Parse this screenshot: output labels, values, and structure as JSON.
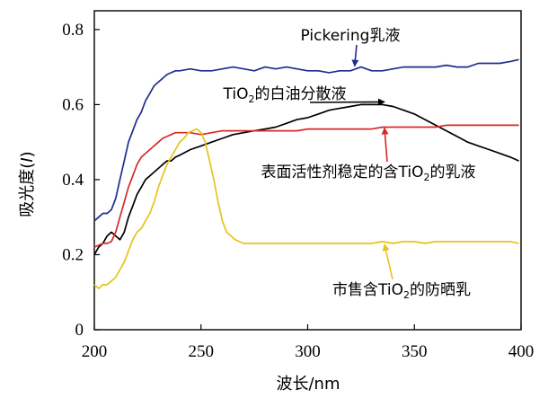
{
  "chart_data": {
    "type": "line",
    "xlabel": "波长/nm",
    "ylabel_prefix": "吸光度(",
    "ylabel_italic": "I",
    "ylabel_suffix": ")",
    "xlim": [
      200,
      400
    ],
    "ylim": [
      0,
      0.85
    ],
    "xticks": [
      200,
      250,
      300,
      350,
      400
    ],
    "yticks": [
      0,
      0.2,
      0.4,
      0.6,
      0.8
    ],
    "ytick_labels": [
      "0",
      "0.2",
      "0.4",
      "0.6",
      "0.8"
    ],
    "series": [
      {
        "name": "Pickering乳液",
        "color": "#1f2d8f",
        "points": [
          [
            200,
            0.29
          ],
          [
            202,
            0.3
          ],
          [
            204,
            0.31
          ],
          [
            206,
            0.31
          ],
          [
            208,
            0.32
          ],
          [
            210,
            0.35
          ],
          [
            212,
            0.4
          ],
          [
            214,
            0.45
          ],
          [
            216,
            0.5
          ],
          [
            218,
            0.53
          ],
          [
            220,
            0.56
          ],
          [
            222,
            0.58
          ],
          [
            224,
            0.61
          ],
          [
            226,
            0.63
          ],
          [
            228,
            0.65
          ],
          [
            230,
            0.66
          ],
          [
            232,
            0.67
          ],
          [
            234,
            0.68
          ],
          [
            236,
            0.685
          ],
          [
            238,
            0.69
          ],
          [
            240,
            0.69
          ],
          [
            245,
            0.695
          ],
          [
            250,
            0.69
          ],
          [
            255,
            0.69
          ],
          [
            260,
            0.695
          ],
          [
            265,
            0.7
          ],
          [
            270,
            0.695
          ],
          [
            275,
            0.69
          ],
          [
            280,
            0.7
          ],
          [
            285,
            0.695
          ],
          [
            290,
            0.7
          ],
          [
            295,
            0.695
          ],
          [
            300,
            0.69
          ],
          [
            305,
            0.69
          ],
          [
            310,
            0.685
          ],
          [
            315,
            0.69
          ],
          [
            320,
            0.69
          ],
          [
            325,
            0.7
          ],
          [
            330,
            0.69
          ],
          [
            335,
            0.69
          ],
          [
            340,
            0.695
          ],
          [
            345,
            0.7
          ],
          [
            350,
            0.7
          ],
          [
            355,
            0.7
          ],
          [
            360,
            0.7
          ],
          [
            365,
            0.705
          ],
          [
            370,
            0.7
          ],
          [
            375,
            0.7
          ],
          [
            380,
            0.71
          ],
          [
            385,
            0.71
          ],
          [
            390,
            0.71
          ],
          [
            395,
            0.715
          ],
          [
            399,
            0.72
          ]
        ]
      },
      {
        "name": "TiO₂的白油分散液",
        "color": "#000000",
        "points": [
          [
            200,
            0.2
          ],
          [
            202,
            0.22
          ],
          [
            204,
            0.23
          ],
          [
            206,
            0.25
          ],
          [
            208,
            0.26
          ],
          [
            210,
            0.25
          ],
          [
            212,
            0.24
          ],
          [
            214,
            0.26
          ],
          [
            216,
            0.3
          ],
          [
            218,
            0.33
          ],
          [
            220,
            0.36
          ],
          [
            222,
            0.38
          ],
          [
            224,
            0.4
          ],
          [
            226,
            0.41
          ],
          [
            228,
            0.42
          ],
          [
            230,
            0.43
          ],
          [
            232,
            0.44
          ],
          [
            234,
            0.45
          ],
          [
            236,
            0.45
          ],
          [
            238,
            0.46
          ],
          [
            240,
            0.465
          ],
          [
            245,
            0.48
          ],
          [
            250,
            0.49
          ],
          [
            255,
            0.5
          ],
          [
            260,
            0.51
          ],
          [
            265,
            0.52
          ],
          [
            270,
            0.525
          ],
          [
            275,
            0.53
          ],
          [
            280,
            0.535
          ],
          [
            285,
            0.54
          ],
          [
            290,
            0.55
          ],
          [
            295,
            0.56
          ],
          [
            300,
            0.565
          ],
          [
            305,
            0.575
          ],
          [
            310,
            0.585
          ],
          [
            315,
            0.59
          ],
          [
            320,
            0.595
          ],
          [
            325,
            0.6
          ],
          [
            330,
            0.6
          ],
          [
            335,
            0.6
          ],
          [
            340,
            0.595
          ],
          [
            345,
            0.585
          ],
          [
            350,
            0.575
          ],
          [
            355,
            0.56
          ],
          [
            360,
            0.545
          ],
          [
            365,
            0.53
          ],
          [
            370,
            0.515
          ],
          [
            375,
            0.5
          ],
          [
            380,
            0.49
          ],
          [
            385,
            0.48
          ],
          [
            390,
            0.47
          ],
          [
            395,
            0.46
          ],
          [
            399,
            0.45
          ]
        ]
      },
      {
        "name": "表面活性剂稳定的含TiO₂的乳液",
        "color": "#d6282b",
        "points": [
          [
            200,
            0.22
          ],
          [
            202,
            0.225
          ],
          [
            204,
            0.23
          ],
          [
            206,
            0.23
          ],
          [
            208,
            0.235
          ],
          [
            210,
            0.26
          ],
          [
            212,
            0.3
          ],
          [
            214,
            0.34
          ],
          [
            216,
            0.38
          ],
          [
            218,
            0.41
          ],
          [
            220,
            0.44
          ],
          [
            222,
            0.46
          ],
          [
            224,
            0.47
          ],
          [
            226,
            0.48
          ],
          [
            228,
            0.49
          ],
          [
            230,
            0.5
          ],
          [
            232,
            0.51
          ],
          [
            234,
            0.515
          ],
          [
            236,
            0.52
          ],
          [
            238,
            0.525
          ],
          [
            240,
            0.525
          ],
          [
            245,
            0.525
          ],
          [
            250,
            0.52
          ],
          [
            255,
            0.525
          ],
          [
            260,
            0.53
          ],
          [
            265,
            0.53
          ],
          [
            270,
            0.53
          ],
          [
            275,
            0.53
          ],
          [
            280,
            0.53
          ],
          [
            285,
            0.53
          ],
          [
            290,
            0.53
          ],
          [
            295,
            0.53
          ],
          [
            300,
            0.535
          ],
          [
            305,
            0.535
          ],
          [
            310,
            0.535
          ],
          [
            315,
            0.535
          ],
          [
            320,
            0.535
          ],
          [
            325,
            0.535
          ],
          [
            330,
            0.535
          ],
          [
            335,
            0.54
          ],
          [
            340,
            0.54
          ],
          [
            345,
            0.54
          ],
          [
            350,
            0.54
          ],
          [
            355,
            0.54
          ],
          [
            360,
            0.54
          ],
          [
            365,
            0.545
          ],
          [
            370,
            0.545
          ],
          [
            375,
            0.545
          ],
          [
            380,
            0.545
          ],
          [
            385,
            0.545
          ],
          [
            390,
            0.545
          ],
          [
            395,
            0.545
          ],
          [
            399,
            0.545
          ]
        ]
      },
      {
        "name": "市售含TiO₂的防晒乳",
        "color": "#e8c21a",
        "points": [
          [
            200,
            0.12
          ],
          [
            202,
            0.11
          ],
          [
            204,
            0.12
          ],
          [
            206,
            0.12
          ],
          [
            208,
            0.13
          ],
          [
            210,
            0.14
          ],
          [
            212,
            0.16
          ],
          [
            214,
            0.18
          ],
          [
            216,
            0.21
          ],
          [
            218,
            0.24
          ],
          [
            220,
            0.26
          ],
          [
            222,
            0.27
          ],
          [
            224,
            0.29
          ],
          [
            226,
            0.31
          ],
          [
            228,
            0.34
          ],
          [
            230,
            0.38
          ],
          [
            232,
            0.41
          ],
          [
            234,
            0.44
          ],
          [
            236,
            0.46
          ],
          [
            238,
            0.48
          ],
          [
            240,
            0.5
          ],
          [
            242,
            0.51
          ],
          [
            244,
            0.525
          ],
          [
            246,
            0.53
          ],
          [
            248,
            0.535
          ],
          [
            250,
            0.525
          ],
          [
            252,
            0.5
          ],
          [
            254,
            0.45
          ],
          [
            256,
            0.4
          ],
          [
            258,
            0.34
          ],
          [
            260,
            0.29
          ],
          [
            262,
            0.26
          ],
          [
            264,
            0.25
          ],
          [
            266,
            0.24
          ],
          [
            268,
            0.235
          ],
          [
            270,
            0.23
          ],
          [
            275,
            0.23
          ],
          [
            280,
            0.23
          ],
          [
            285,
            0.23
          ],
          [
            290,
            0.23
          ],
          [
            295,
            0.23
          ],
          [
            300,
            0.23
          ],
          [
            305,
            0.23
          ],
          [
            310,
            0.23
          ],
          [
            315,
            0.23
          ],
          [
            320,
            0.23
          ],
          [
            325,
            0.23
          ],
          [
            330,
            0.23
          ],
          [
            335,
            0.235
          ],
          [
            340,
            0.23
          ],
          [
            345,
            0.235
          ],
          [
            350,
            0.235
          ],
          [
            355,
            0.23
          ],
          [
            360,
            0.235
          ],
          [
            365,
            0.235
          ],
          [
            370,
            0.235
          ],
          [
            375,
            0.235
          ],
          [
            380,
            0.235
          ],
          [
            385,
            0.235
          ],
          [
            390,
            0.235
          ],
          [
            395,
            0.235
          ],
          [
            399,
            0.23
          ]
        ]
      }
    ],
    "annotations": [
      {
        "text": "Pickering乳液",
        "color": "#1f2d8f",
        "arrow_to": [
          322,
          0.695
        ]
      },
      {
        "text_pre": "TiO",
        "text_sub": "2",
        "text_post": "的白油分散液",
        "color": "#000000",
        "arrow_to": [
          336,
          0.6
        ]
      },
      {
        "text_pre": "表面活性剂稳定的含TiO",
        "text_sub": "2",
        "text_post": "的乳液",
        "color": "#d6282b",
        "arrow_to": [
          336,
          0.545
        ]
      },
      {
        "text_pre": "市售含TiO",
        "text_sub": "2",
        "text_post": "的防晒乳",
        "color": "#e8c21a",
        "arrow_to": [
          336,
          0.235
        ]
      }
    ]
  }
}
